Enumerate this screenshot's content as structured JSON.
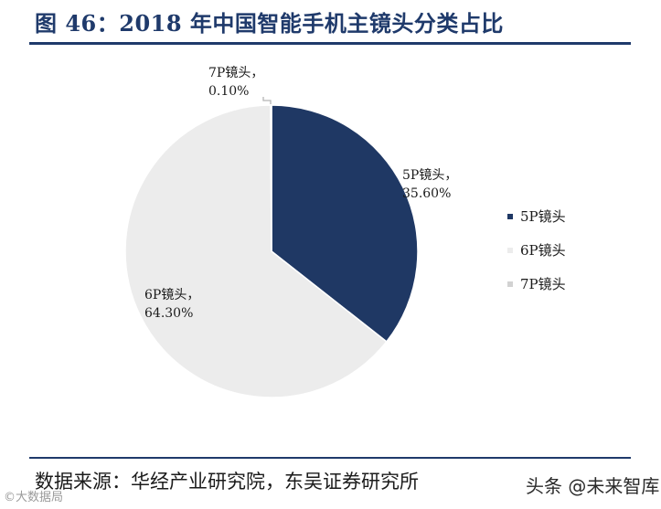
{
  "header": {
    "title": "图 46：2018 年中国智能手机主镜头分类占比"
  },
  "footer": {
    "source": "数据来源：华经产业研究院，东吴证券研究所",
    "watermark_left": "©大数据局",
    "watermark_right": "头条 @未来智库"
  },
  "chart_data": {
    "type": "pie",
    "title": "",
    "categories": [
      "5P镜头",
      "6P镜头",
      "7P镜头"
    ],
    "values": [
      35.6,
      64.3,
      0.1
    ],
    "data_labels": [
      [
        "5P镜头，",
        "35.60%"
      ],
      [
        "6P镜头，",
        "64.30%"
      ],
      [
        "7P镜头，",
        "0.10%"
      ]
    ],
    "colors": [
      "#1f3864",
      "#ececec",
      "#d2d2d2"
    ],
    "legend": {
      "placement": "right",
      "entries": [
        "5P镜头",
        "6P镜头",
        "7P镜头"
      ]
    },
    "start": "12 o'clock, clockwise"
  }
}
